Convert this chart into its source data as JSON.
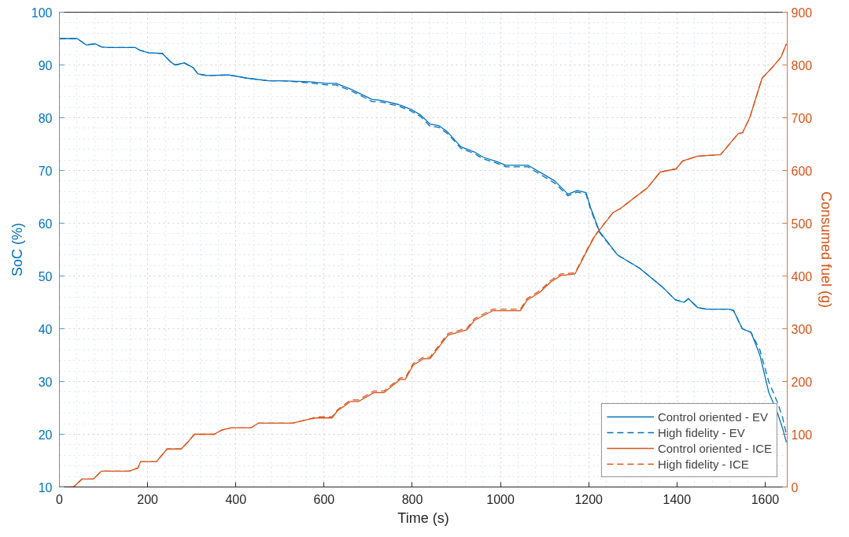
{
  "chart_data": {
    "type": "line",
    "xlabel": "Time (s)",
    "ylabel": "SoC (%)",
    "y2label": "Consumed fuel (g)",
    "xlim": [
      0,
      1650
    ],
    "xticks": [
      0,
      200,
      400,
      600,
      800,
      1000,
      1200,
      1400,
      1600
    ],
    "ylim": [
      10,
      100
    ],
    "yticks": [
      10,
      20,
      30,
      40,
      50,
      60,
      70,
      80,
      90,
      100
    ],
    "y2lim": [
      0,
      900
    ],
    "y2ticks": [
      0,
      100,
      200,
      300,
      400,
      500,
      600,
      700,
      800,
      900
    ],
    "grid": true,
    "legend": "bottom right",
    "series": [
      {
        "name": "Control oriented - EV",
        "color": "#0072bd",
        "line_style": "solid",
        "x": [
          0,
          40,
          61,
          81,
          96,
          111,
          172,
          182,
          202,
          233,
          253,
          263,
          283,
          303,
          314,
          334,
          384,
          425,
          475,
          506,
          567,
          607,
          627,
          658,
          688,
          708,
          728,
          769,
          799,
          819,
          840,
          860,
          880,
          910,
          941,
          961,
          991,
          1012,
          1062,
          1093,
          1123,
          1153,
          1174,
          1194,
          1204,
          1224,
          1265,
          1315,
          1366,
          1396,
          1416,
          1426,
          1447,
          1467,
          1517,
          1528,
          1548,
          1568,
          1588,
          1608,
          1628,
          1640,
          1648
        ],
        "values": [
          95,
          95,
          93.8,
          94,
          93.4,
          93.3,
          93.3,
          92.8,
          92.3,
          92.2,
          90.5,
          90,
          90.4,
          89.5,
          88.3,
          88,
          88.1,
          87.5,
          87,
          87,
          86.8,
          86.5,
          86.5,
          85.5,
          84.3,
          83.5,
          83.3,
          82.5,
          81.5,
          80.5,
          78.8,
          78.5,
          77.3,
          74.5,
          73.5,
          72.5,
          71.7,
          71,
          71,
          69.5,
          68,
          65.5,
          66.2,
          65.8,
          63,
          58.5,
          54,
          51.5,
          48,
          45.5,
          45,
          45.7,
          44,
          43.7,
          43.7,
          43.5,
          40,
          39.3,
          35,
          28,
          24,
          21,
          18.5
        ]
      },
      {
        "name": "High fidelity - EV",
        "color": "#0072bd",
        "line_style": "dashed",
        "x": [
          0,
          40,
          61,
          81,
          96,
          111,
          172,
          182,
          202,
          233,
          253,
          263,
          283,
          303,
          314,
          334,
          384,
          425,
          475,
          506,
          567,
          607,
          627,
          658,
          688,
          708,
          728,
          769,
          799,
          819,
          840,
          860,
          880,
          910,
          941,
          961,
          991,
          1012,
          1062,
          1093,
          1123,
          1153,
          1174,
          1194,
          1204,
          1224,
          1265,
          1315,
          1366,
          1396,
          1416,
          1426,
          1447,
          1467,
          1517,
          1528,
          1548,
          1568,
          1588,
          1608,
          1628,
          1640,
          1648
        ],
        "values": [
          95,
          95,
          93.8,
          94,
          93.4,
          93.3,
          93.3,
          92.8,
          92.3,
          92.2,
          90.5,
          90,
          90.4,
          89.5,
          88.3,
          88,
          88.1,
          87.5,
          87,
          87,
          86.6,
          86.2,
          86.2,
          85.2,
          84,
          83.1,
          83,
          82.2,
          81.2,
          80.2,
          78.4,
          78.2,
          77,
          74.2,
          73.2,
          72.2,
          71.4,
          70.7,
          70.7,
          69.1,
          67.6,
          65.2,
          65.9,
          65.5,
          62.7,
          58.3,
          54,
          51.5,
          48,
          45.5,
          45,
          45.7,
          44,
          43.7,
          43.7,
          43.5,
          40,
          39.3,
          36,
          30,
          26,
          23,
          20
        ]
      },
      {
        "name": "Control oriented - ICE",
        "color": "#d95319",
        "line_style": "solid",
        "axis": "y2",
        "x": [
          0,
          32,
          51,
          77,
          95,
          158,
          178,
          184,
          220,
          244,
          276,
          291,
          306,
          351,
          368,
          389,
          434,
          451,
          529,
          558,
          583,
          618,
          630,
          660,
          678,
          713,
          736,
          773,
          784,
          802,
          825,
          840,
          881,
          924,
          941,
          982,
          1045,
          1060,
          1089,
          1113,
          1137,
          1169,
          1196,
          1214,
          1255,
          1272,
          1303,
          1333,
          1362,
          1398,
          1413,
          1446,
          1499,
          1539,
          1549,
          1565,
          1593,
          1619,
          1636,
          1648
        ],
        "values": [
          0,
          0,
          15,
          15,
          30,
          30,
          36,
          48,
          48,
          72,
          72,
          85,
          100,
          100,
          108,
          112,
          112,
          121,
          121,
          127,
          131,
          131,
          144,
          162,
          162,
          179,
          179,
          204,
          204,
          231,
          243,
          243,
          288,
          298,
          316,
          334,
          334,
          354,
          369,
          388,
          401,
          404,
          448,
          476,
          520,
          528,
          548,
          567,
          597,
          603,
          618,
          627,
          630,
          670,
          672,
          700,
          775,
          798,
          815,
          840
        ]
      },
      {
        "name": "High fidelity - ICE",
        "color": "#d95319",
        "line_style": "dashed",
        "axis": "y2",
        "x": [
          0,
          32,
          51,
          77,
          95,
          158,
          178,
          184,
          220,
          244,
          276,
          291,
          306,
          351,
          368,
          389,
          434,
          451,
          529,
          558,
          583,
          618,
          630,
          660,
          678,
          713,
          736,
          773,
          784,
          802,
          825,
          840,
          881,
          924,
          941,
          982,
          1045,
          1060,
          1089,
          1113,
          1137,
          1169,
          1196,
          1214,
          1255,
          1272,
          1303,
          1333,
          1362,
          1398,
          1413,
          1446,
          1499,
          1539,
          1549,
          1565,
          1593,
          1619,
          1636,
          1648
        ],
        "values": [
          0,
          0,
          15,
          15,
          30,
          30,
          36,
          48,
          48,
          72,
          72,
          85,
          100,
          100,
          108,
          112,
          112,
          121,
          121,
          127,
          133,
          133,
          146,
          165,
          165,
          182,
          182,
          207,
          207,
          234,
          246,
          246,
          291,
          301,
          319,
          337,
          337,
          357,
          372,
          391,
          404,
          406,
          450,
          477,
          520,
          528,
          548,
          567,
          597,
          603,
          618,
          627,
          630,
          670,
          672,
          700,
          775,
          798,
          815,
          840
        ]
      }
    ]
  }
}
